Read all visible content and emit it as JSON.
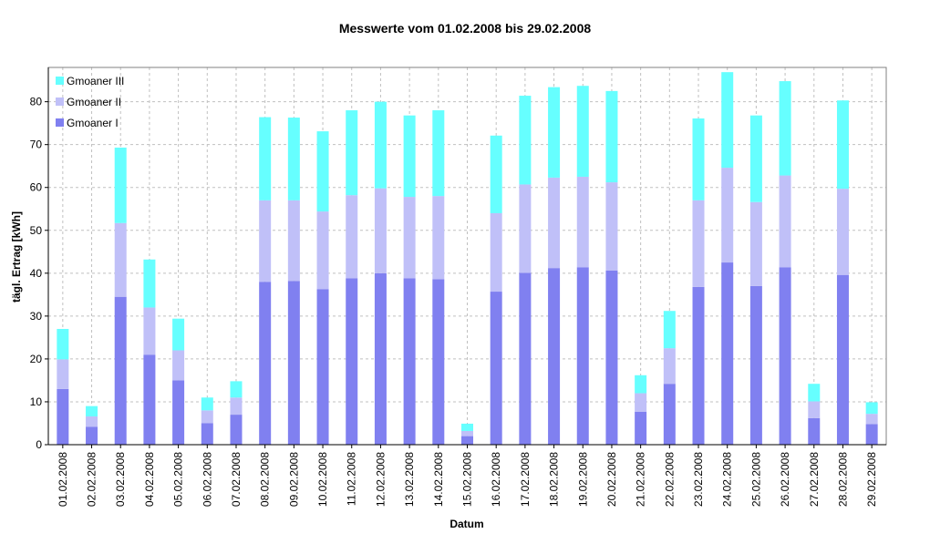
{
  "chart_data": {
    "type": "bar",
    "stacked": true,
    "title": "Messwerte vom 01.02.2008 bis 29.02.2008",
    "xlabel": "Datum",
    "ylabel": "tägl. Ertrag [kWh]",
    "ylim": [
      0,
      88
    ],
    "yticks": [
      0,
      10,
      20,
      30,
      40,
      50,
      60,
      70,
      80
    ],
    "grid": true,
    "legend_position": "top-left",
    "categories": [
      "01.02.2008",
      "02.02.2008",
      "03.02.2008",
      "04.02.2008",
      "05.02.2008",
      "06.02.2008",
      "07.02.2008",
      "08.02.2008",
      "09.02.2008",
      "10.02.2008",
      "11.02.2008",
      "12.02.2008",
      "13.02.2008",
      "14.02.2008",
      "15.02.2008",
      "16.02.2008",
      "17.02.2008",
      "18.02.2008",
      "19.02.2008",
      "20.02.2008",
      "21.02.2008",
      "22.02.2008",
      "23.02.2008",
      "24.02.2008",
      "25.02.2008",
      "26.02.2008",
      "27.02.2008",
      "28.02.2008",
      "29.02.2008"
    ],
    "series": [
      {
        "name": "Gmoaner I",
        "color": "#8080f0",
        "values": [
          13,
          4.2,
          34.5,
          21,
          15,
          5,
          7,
          38,
          38.2,
          36.3,
          38.8,
          40,
          38.8,
          38.6,
          2,
          35.7,
          40.1,
          41.2,
          41.4,
          40.6,
          7.7,
          14.2,
          36.8,
          42.5,
          37,
          41.4,
          6.2,
          39.6,
          4.8
        ]
      },
      {
        "name": "Gmoaner II",
        "color": "#c0c0f8",
        "values": [
          6.9,
          2.4,
          17.2,
          11,
          7,
          3,
          4,
          19,
          18.8,
          18.1,
          19.4,
          19.8,
          19,
          19.4,
          1.2,
          18.3,
          20.6,
          21.1,
          21.1,
          20.6,
          4.3,
          8.3,
          20.2,
          22.1,
          19.6,
          21.4,
          3.9,
          20.1,
          2.4
        ]
      },
      {
        "name": "Gmoaner III",
        "color": "#66ffff",
        "values": [
          7.1,
          2.4,
          17.6,
          11.2,
          7.4,
          3,
          3.8,
          19.4,
          19.3,
          18.7,
          19.8,
          20.2,
          19,
          20,
          1.7,
          18.1,
          20.7,
          21.1,
          21.2,
          21.3,
          4.2,
          8.7,
          19.1,
          22.3,
          20.2,
          22,
          4.1,
          20.6,
          2.7
        ]
      }
    ]
  }
}
